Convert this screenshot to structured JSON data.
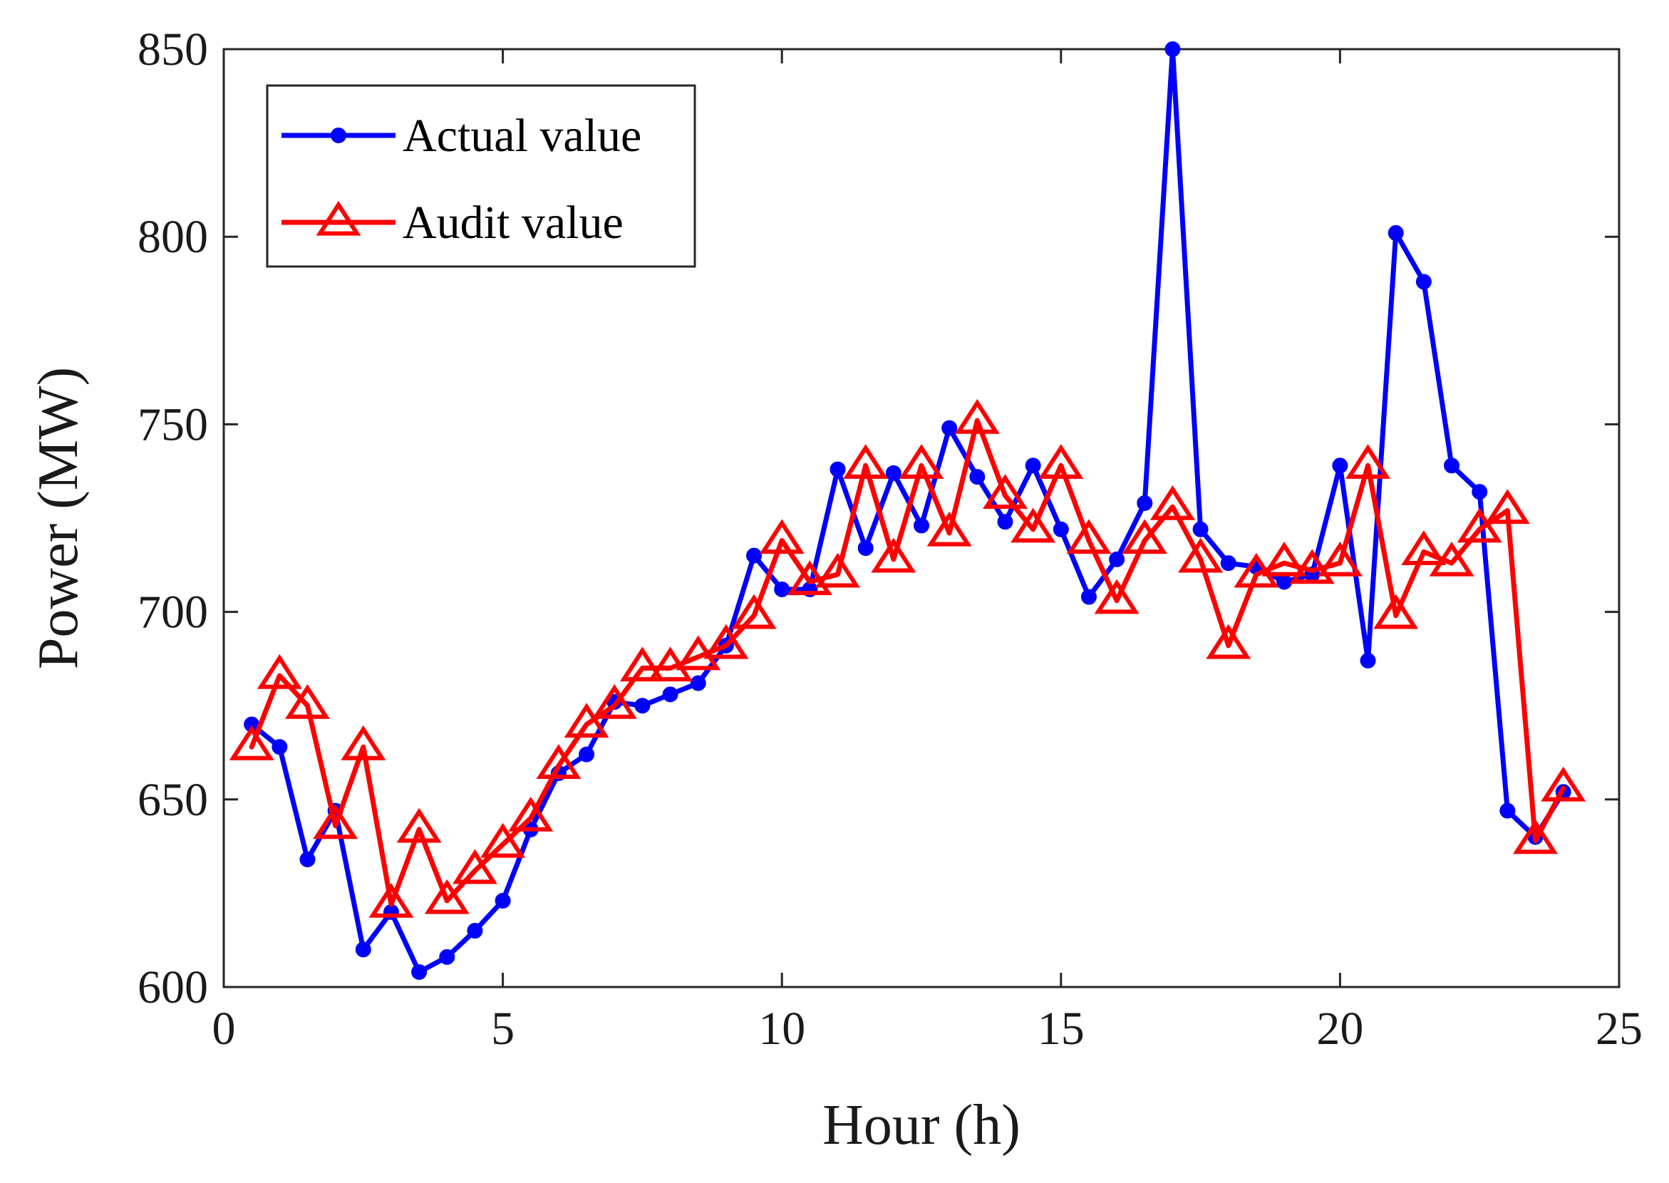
{
  "chart_data": {
    "type": "line",
    "title": "",
    "xlabel": "Hour (h)",
    "ylabel": "Power (MW)",
    "xlim": [
      0,
      25
    ],
    "ylim": [
      600,
      850
    ],
    "xticks": [
      0,
      5,
      10,
      15,
      20,
      25
    ],
    "yticks": [
      600,
      650,
      700,
      750,
      800,
      850
    ],
    "grid": false,
    "legend_position": "top-left",
    "x": [
      0.5,
      1,
      1.5,
      2,
      2.5,
      3,
      3.5,
      4,
      4.5,
      5,
      5.5,
      6,
      6.5,
      7,
      7.5,
      8,
      8.5,
      9,
      9.5,
      10,
      10.5,
      11,
      11.5,
      12,
      12.5,
      13,
      13.5,
      14,
      14.5,
      15,
      15.5,
      16,
      16.5,
      17,
      17.5,
      18,
      18.5,
      19,
      19.5,
      20,
      20.5,
      21,
      21.5,
      22,
      22.5,
      23,
      23.5,
      24
    ],
    "series": [
      {
        "name": "Actual value",
        "color": "#0000ff",
        "marker": "circle",
        "values": [
          670,
          664,
          634,
          647,
          610,
          620,
          604,
          608,
          615,
          623,
          642,
          657,
          662,
          676,
          675,
          678,
          681,
          691,
          715,
          706,
          706,
          738,
          717,
          737,
          723,
          749,
          736,
          724,
          739,
          722,
          704,
          714,
          729,
          850,
          722,
          713,
          712,
          708,
          710,
          739,
          687,
          801,
          788,
          739,
          732,
          647,
          640,
          652
        ]
      },
      {
        "name": "Audit value",
        "color": "#ff0000",
        "marker": "triangle",
        "values": [
          664,
          683,
          675,
          643,
          664,
          622,
          642,
          623,
          631,
          638,
          645,
          659,
          670,
          675,
          685,
          685,
          688,
          691,
          699,
          719,
          708,
          710,
          739,
          714,
          739,
          721,
          751,
          731,
          722,
          739,
          719,
          703,
          719,
          728,
          714,
          691,
          710,
          713,
          711,
          713,
          739,
          699,
          716,
          713,
          722,
          727,
          639,
          653
        ]
      }
    ]
  }
}
